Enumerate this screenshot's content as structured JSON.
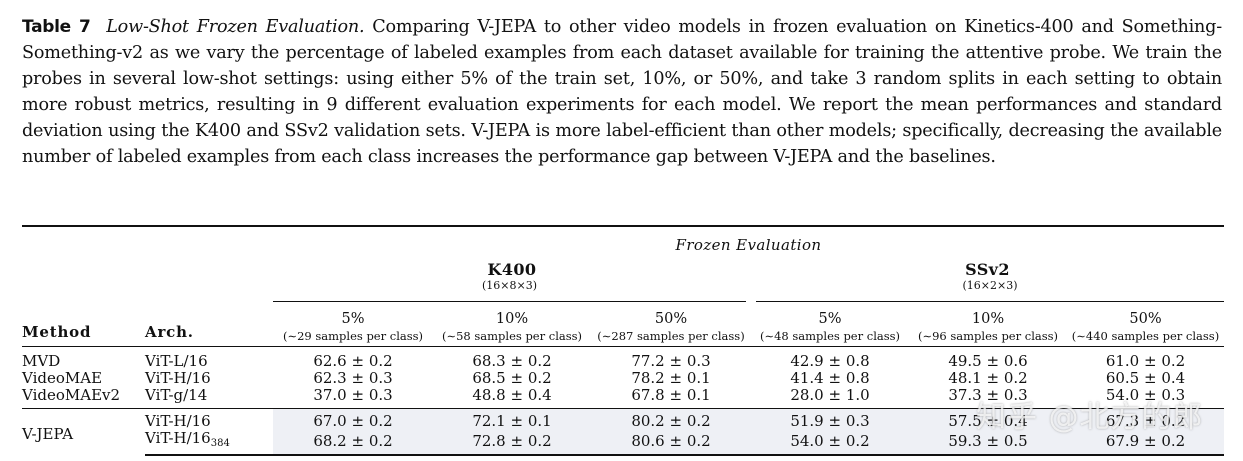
{
  "caption": {
    "label": "Table 7",
    "title": "Low-Shot Frozen Evaluation.",
    "body": "Comparing V-JEPA to other video models in frozen evaluation on Kinetics-400 and Something-Something-v2 as we vary the percentage of labeled examples from each dataset available for training the attentive probe. We train the probes in several low-shot settings: using either 5% of the train set, 10%, or 50%, and take 3 random splits in each setting to obtain more robust metrics, resulting in 9 different evaluation experiments for each model. We report the mean performances and standard deviation using the K400 and SSv2 validation sets. V-JEPA is more label-efficient than other models; specifically, decreasing the available number of labeled examples from each class increases the performance gap between V-JEPA and the baselines."
  },
  "table": {
    "group_title": "Frozen Evaluation",
    "col_method": "Method",
    "col_arch": "Arch.",
    "datasets": [
      {
        "name": "K400",
        "sub": "(16×8×3)"
      },
      {
        "name": "SSv2",
        "sub": "(16×2×3)"
      }
    ],
    "splits": [
      {
        "pct": "5%",
        "samples": "(∼29 samples per class)"
      },
      {
        "pct": "10%",
        "samples": "(∼58 samples per class)"
      },
      {
        "pct": "50%",
        "samples": "(∼287 samples per class)"
      },
      {
        "pct": "5%",
        "samples": "(∼48 samples per class)"
      },
      {
        "pct": "10%",
        "samples": "(∼96 samples per class)"
      },
      {
        "pct": "50%",
        "samples": "(∼440 samples per class)"
      }
    ],
    "baselines": [
      {
        "method": "MVD",
        "arch": "ViT-L/16",
        "values": [
          "62.6 ± 0.2",
          "68.3 ± 0.2",
          "77.2 ± 0.3",
          "42.9 ± 0.8",
          "49.5 ± 0.6",
          "61.0 ± 0.2"
        ]
      },
      {
        "method": "VideoMAE",
        "arch": "ViT-H/16",
        "values": [
          "62.3 ± 0.3",
          "68.5 ± 0.2",
          "78.2 ± 0.1",
          "41.4 ± 0.8",
          "48.1 ± 0.2",
          "60.5 ± 0.4"
        ]
      },
      {
        "method": "VideoMAEv2",
        "arch": "ViT-g/14",
        "values": [
          "37.0 ± 0.3",
          "48.8 ± 0.4",
          "67.8 ± 0.1",
          "28.0 ± 1.0",
          "37.3 ± 0.3",
          "54.0 ± 0.3"
        ]
      }
    ],
    "vjepa": {
      "method": "V-JEPA",
      "rows": [
        {
          "arch": "ViT-H/16",
          "values": [
            "67.0 ± 0.2",
            "72.1 ± 0.1",
            "80.2 ± 0.2",
            "51.9 ± 0.3",
            "57.5 ± 0.4",
            "67.3 ± 0.2"
          ]
        },
        {
          "arch_base": "ViT-H/16",
          "arch_sub": "384",
          "values": [
            "68.2 ± 0.2",
            "72.8 ± 0.2",
            "80.6 ± 0.2",
            "54.0 ± 0.2",
            "59.3 ± 0.5",
            "67.9 ± 0.2"
          ]
        }
      ]
    }
  },
  "watermark": "知乎 @北方的郎"
}
